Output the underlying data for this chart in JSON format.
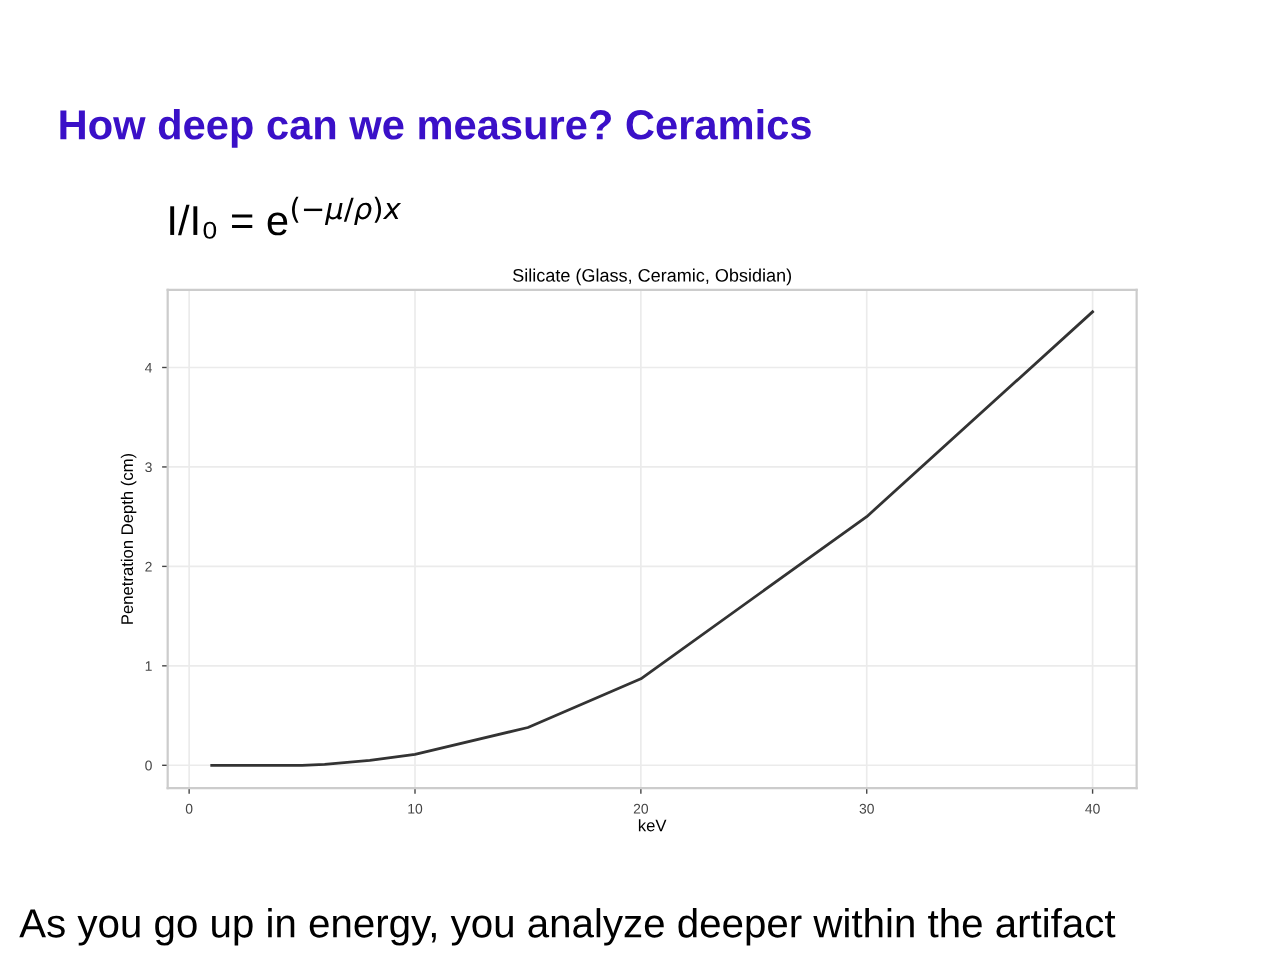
{
  "chart_data": {
    "type": "line",
    "title": "How deep can we measure? Ceramics",
    "subtitle": "Silicate (Glass, Ceramic, Obsidian)",
    "xlabel": "keV",
    "ylabel": "Penetration Depth (cm)",
    "annotations": [
      "I/I₀ = e$^{(−μ/ρ)x}$",
      "As you go up in energy, you analyze deeper within the artifact"
    ],
    "x": [
      1,
      2,
      3,
      4,
      5,
      6,
      8,
      10,
      15,
      20,
      30,
      40
    ],
    "series": [
      {
        "color": "#333333",
        "values": [
          0,
          0,
          0,
          0,
          0,
          0.01,
          0.05,
          0.11,
          0.38,
          0.87,
          2.5,
          4.56
        ]
      }
    ],
    "xlim": [
      -0.95,
      41.95
    ],
    "ylim": [
      -0.23,
      4.78
    ],
    "xticks": [
      0,
      10,
      20,
      30,
      40
    ],
    "yticks": [
      0,
      1,
      2,
      3,
      4
    ],
    "grid": true,
    "marker": "none",
    "line_style": "solid"
  }
}
